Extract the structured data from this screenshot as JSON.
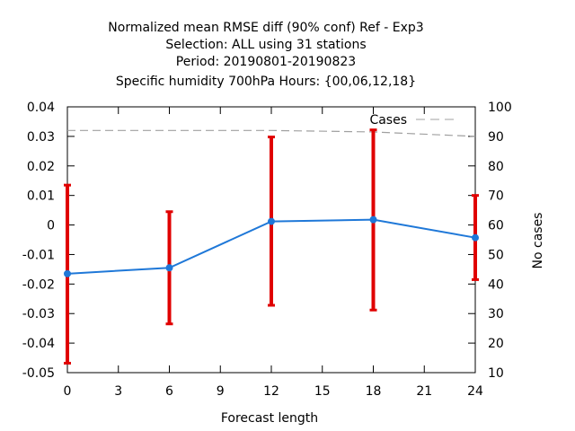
{
  "chart_data": {
    "type": "line",
    "title_lines": [
      "Normalized mean RMSE diff (90% conf) Ref - Exp3",
      "Selection: ALL using    31 stations",
      "Period: 20190801-20190823",
      "Specific humidity 700hPa   Hours: {00,06,12,18}"
    ],
    "xlabel": "Forecast length",
    "ylabel": "",
    "y2label": "No cases",
    "xlim": [
      0,
      24
    ],
    "ylim": [
      -0.05,
      0.04
    ],
    "y2lim": [
      10,
      100
    ],
    "xticks": [
      0,
      3,
      6,
      9,
      12,
      15,
      18,
      21,
      24
    ],
    "yticks": [
      -0.05,
      -0.04,
      -0.03,
      -0.02,
      -0.01,
      0,
      0.01,
      0.02,
      0.03,
      0.04
    ],
    "ytick_labels": [
      "-0.05",
      "-0.04",
      "-0.03",
      "-0.02",
      "-0.01",
      "0",
      "0.01",
      "0.02",
      "0.03",
      "0.04"
    ],
    "y2ticks": [
      10,
      20,
      30,
      40,
      50,
      60,
      70,
      80,
      90,
      100
    ],
    "series": [
      {
        "x": [
          0,
          6,
          12,
          18,
          24
        ],
        "y": [
          -0.0165,
          -0.0145,
          0.0012,
          0.0018,
          -0.0043
        ],
        "lower": [
          -0.0468,
          -0.0335,
          -0.0272,
          -0.0288,
          -0.0185
        ],
        "upper": [
          0.0135,
          0.0045,
          0.0298,
          0.0322,
          0.01
        ],
        "color": "#1f78d8",
        "errorbar_color": "#e00000"
      },
      {
        "name": "Cases",
        "axis": "y2",
        "x": [
          0,
          6,
          12,
          18,
          24
        ],
        "y": [
          92,
          92,
          92,
          91.5,
          90
        ],
        "color": "#a0a0a0",
        "style": "dashed"
      }
    ],
    "legend": {
      "entries": [
        "Cases"
      ],
      "position": "top-right"
    },
    "grid": false
  }
}
